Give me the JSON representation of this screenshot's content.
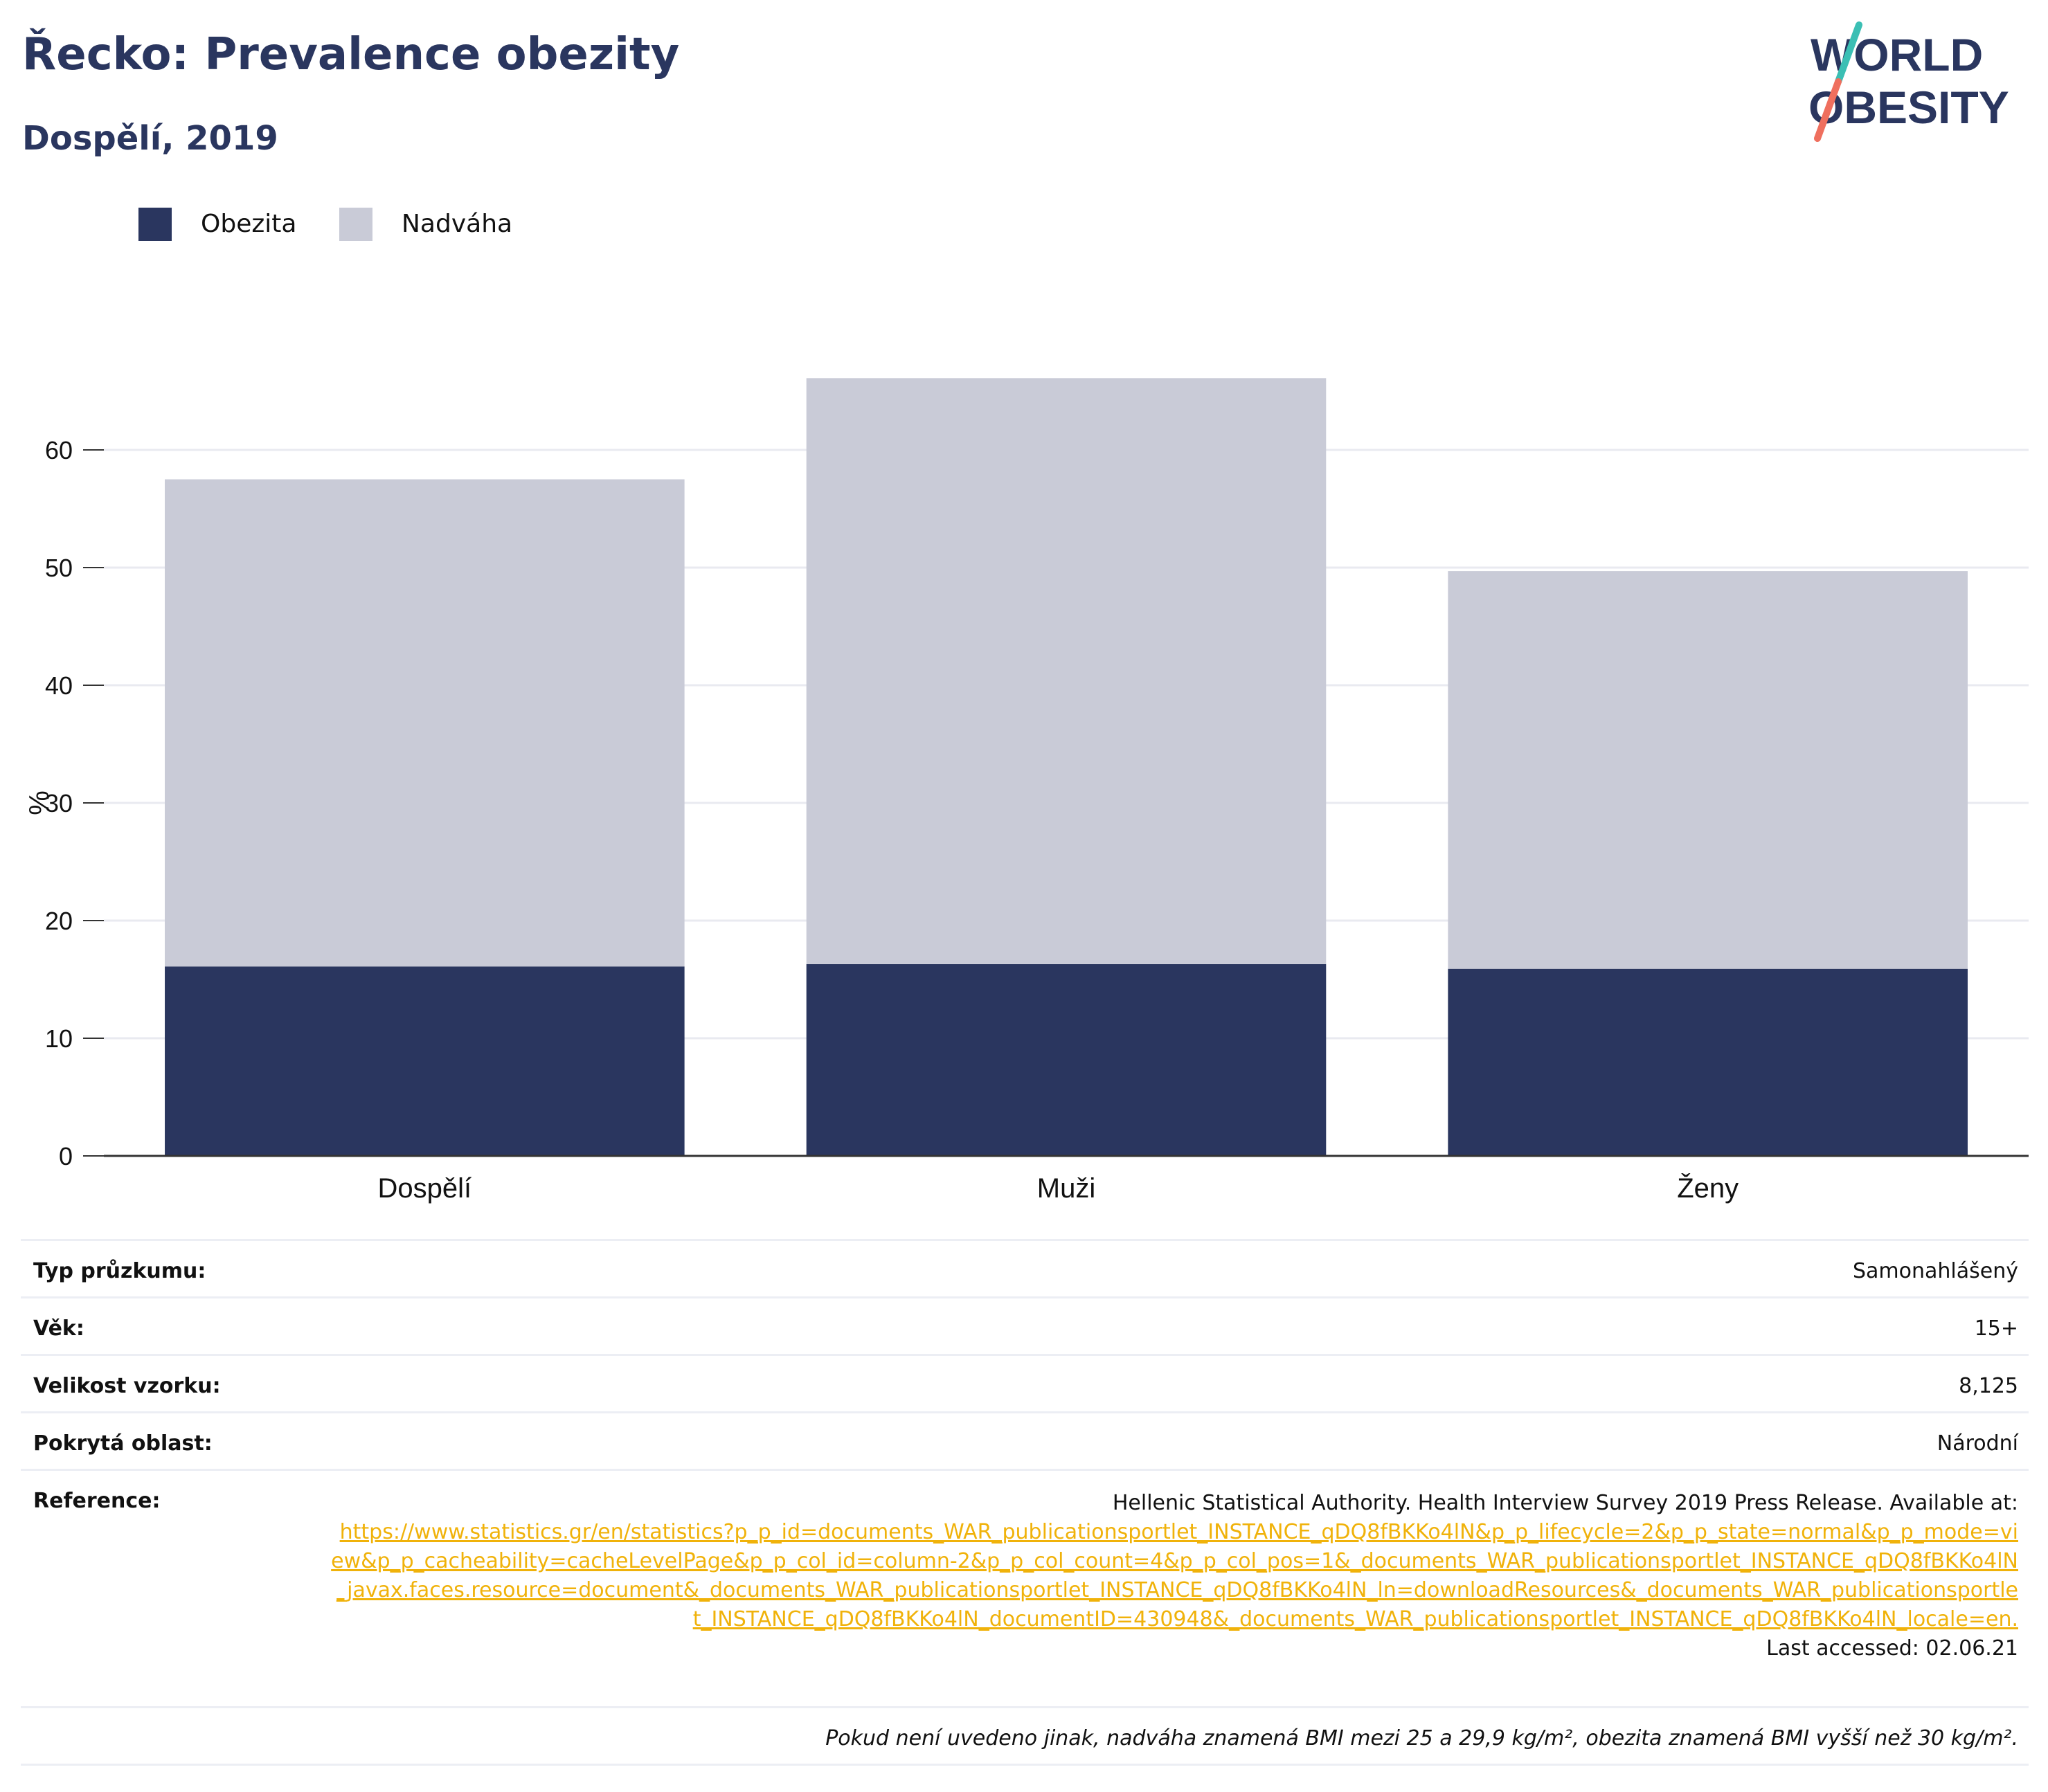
{
  "header": {
    "title": "Řecko: Prevalence obezity",
    "subtitle": "Dospělí, 2019"
  },
  "logo": {
    "line1": "WORLD",
    "line2": "OBESITY",
    "text_color": "#2a365f",
    "accent_teal": "#3bbfb4",
    "accent_coral": "#ef6f5e"
  },
  "colors": {
    "obesity": "#2a365f",
    "overweight": "#c9cbd7",
    "grid": "#e9eaf0",
    "axis": "#333333",
    "link": "#f0b20a"
  },
  "chart_data": {
    "type": "bar",
    "stacked": true,
    "categories": [
      "Dospělí",
      "Muži",
      "Ženy"
    ],
    "series": [
      {
        "name": "Obezita",
        "values": [
          16.1,
          16.3,
          15.9
        ]
      },
      {
        "name": "Nadváha",
        "values": [
          41.4,
          49.8,
          33.8
        ]
      }
    ],
    "totals": [
      57.5,
      66.1,
      49.7
    ],
    "ylabel": "%",
    "xlabel": "",
    "ylim": [
      0,
      70
    ],
    "yticks": [
      0,
      10,
      20,
      30,
      40,
      50,
      60
    ],
    "grid": true,
    "legend_position": "top-left"
  },
  "info": {
    "survey_type_label": "Typ průzkumu:",
    "survey_type_value": "Samonahlášený",
    "age_label": "Věk:",
    "age_value": "15+",
    "sample_label": "Velikost vzorku:",
    "sample_value": "8,125",
    "area_label": "Pokrytá oblast:",
    "area_value": "Národní",
    "reference_label": "Reference:",
    "reference_text": "Hellenic Statistical Authority. Health Interview Survey 2019 Press Release. Available at:",
    "reference_url": "https://www.statistics.gr/en/statistics?p_p_id=documents_WAR_publicationsportlet_INSTANCE_qDQ8fBKKo4lN&p_p_lifecycle=2&p_p_state=normal&p_p_mode=view&p_p_cacheability=cacheLevelPage&p_p_col_id=column-2&p_p_col_count=4&p_p_col_pos=1&_documents_WAR_publicationsportlet_INSTANCE_qDQ8fBKKo4lN_javax.faces.resource=document&_documents_WAR_publicationsportlet_INSTANCE_qDQ8fBKKo4lN_ln=downloadResources&_documents_WAR_publicationsportlet_INSTANCE_qDQ8fBKKo4lN_documentID=430948&_documents_WAR_publicationsportlet_INSTANCE_qDQ8fBKKo4lN_locale=en.",
    "last_accessed": "Last accessed: 02.06.21",
    "note": "Pokud není uvedeno jinak, nadváha znamená BMI mezi 25 a 29,9 kg/m², obezita znamená BMI vyšší než 30 kg/m²."
  }
}
